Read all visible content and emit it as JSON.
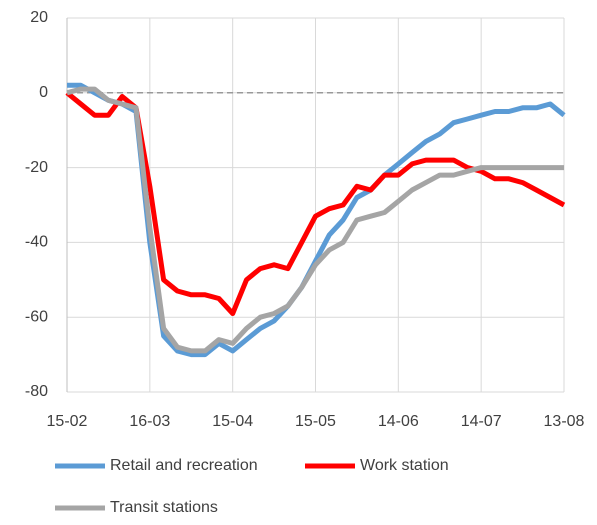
{
  "chart_data": {
    "type": "line",
    "categories": [
      "15-02",
      null,
      null,
      null,
      null,
      null,
      "16-03",
      null,
      null,
      null,
      null,
      null,
      "15-04",
      null,
      null,
      null,
      null,
      null,
      "15-05",
      null,
      null,
      null,
      null,
      null,
      "14-06",
      null,
      null,
      null,
      null,
      null,
      "14-07",
      null,
      null,
      null,
      null,
      null,
      "13-08"
    ],
    "series": [
      {
        "name": "Retail and recreation",
        "color": "#5b9bd5",
        "values": [
          2,
          2,
          0,
          -2,
          -3,
          -5,
          -40,
          -65,
          -69,
          -70,
          -70,
          -67,
          -69,
          -66,
          -63,
          -61,
          -57,
          -52,
          -45,
          -38,
          -34,
          -28,
          -26,
          -22,
          -19,
          -16,
          -13,
          -11,
          -8,
          -7,
          -6,
          -5,
          -5,
          -4,
          -4,
          -3,
          -6
        ]
      },
      {
        "name": "Work station",
        "color": "#ff0000",
        "values": [
          0,
          -3,
          -6,
          -6,
          -1,
          -4,
          -25,
          -50,
          -53,
          -54,
          -54,
          -55,
          -59,
          -50,
          -47,
          -46,
          -47,
          -40,
          -33,
          -31,
          -30,
          -25,
          -26,
          -22,
          -22,
          -19,
          -18,
          -18,
          -18,
          -20,
          -21,
          -23,
          -23,
          -24,
          -26,
          -28,
          -30
        ]
      },
      {
        "name": "Transit stations",
        "color": "#a5a5a5",
        "values": [
          0,
          1,
          1,
          -2,
          -3,
          -4,
          -36,
          -63,
          -68,
          -69,
          -69,
          -66,
          -67,
          -63,
          -60,
          -59,
          -57,
          -52,
          -46,
          -42,
          -40,
          -34,
          -33,
          -32,
          -29,
          -26,
          -24,
          -22,
          -22,
          -21,
          -20,
          -20,
          -20,
          -20,
          -20,
          -20,
          -20
        ]
      }
    ],
    "ylim": [
      -80,
      20
    ],
    "yticks": [
      -80,
      -60,
      -40,
      -20,
      0,
      20
    ],
    "grid": true,
    "reference_line": 0,
    "legend": "bottom"
  }
}
